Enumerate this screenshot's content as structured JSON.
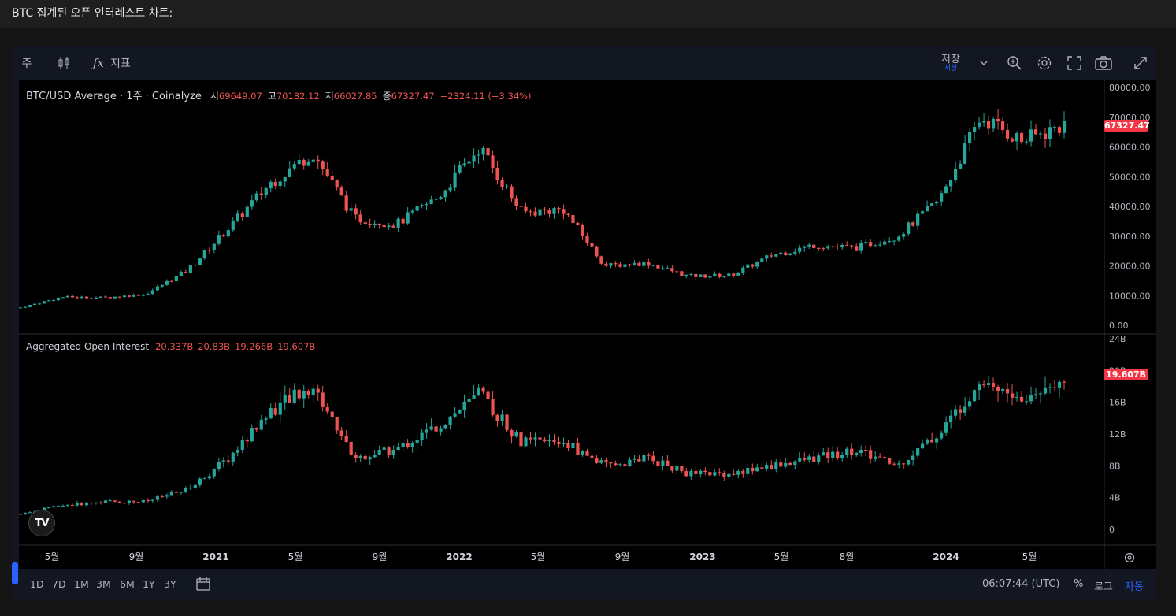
{
  "page_title": "BTC 집계된 오픈 인터레스트 차트:",
  "toolbar": {
    "interval": "주",
    "indicators_label": "지표",
    "save_label": "저장",
    "save_sublabel": "저장"
  },
  "legend_top": {
    "symbol": "BTC/USD Average · 1주 · Coinalyze",
    "o_label": "시",
    "o": "69649.07",
    "h_label": "고",
    "h": "70182.12",
    "l_label": "저",
    "l": "66027.85",
    "c_label": "종",
    "c": "67327.47",
    "change": "−2324.11 (−3.34%)"
  },
  "legend_bottom": {
    "name": "Aggregated Open Interest",
    "o": "20.337B",
    "h": "20.83B",
    "l": "19.266B",
    "c": "19.607B"
  },
  "price_scale_top": [
    "80000.00",
    "70000.00",
    "60000.00",
    "50000.00",
    "40000.00",
    "30000.00",
    "20000.00",
    "10000.00",
    "0.00"
  ],
  "price_scale_bottom": [
    "24B",
    "20B",
    "16B",
    "12B",
    "8B",
    "4B",
    "0"
  ],
  "last_price_tag": "67327.47",
  "last_oi_tag": "19.607B",
  "time_axis": [
    "5월",
    "9월",
    "2021",
    "5월",
    "9월",
    "2022",
    "5월",
    "9월",
    "2023",
    "5월",
    "8월",
    "2024",
    "5월"
  ],
  "logo_text": "TV",
  "bottom_bar": {
    "ranges": [
      "1D",
      "7D",
      "1M",
      "3M",
      "6M",
      "1Y",
      "3Y"
    ],
    "clock": "06:07:44 (UTC)",
    "percent_label": "%",
    "log_label": "로그",
    "auto_label": "자동"
  },
  "colors": {
    "up": "#26a69a",
    "down": "#ef5350",
    "accent": "#2962ff"
  },
  "icons": [
    "candle-style-icon",
    "fx-icon",
    "chevron-down-icon",
    "magnify-plus-icon",
    "gear-icon",
    "fullscreen-icon",
    "camera-icon",
    "expand-icon",
    "calendar-icon",
    "settings-icon"
  ],
  "chart_data": {
    "type": "candlestick",
    "interval": "1W",
    "price_series": {
      "name": "BTC/USD Average",
      "ylim": [
        0,
        80000
      ],
      "x": [
        "2020-03",
        "2020-05",
        "2020-07",
        "2020-09",
        "2020-11",
        "2021-01",
        "2021-02",
        "2021-04",
        "2021-05",
        "2021-07",
        "2021-09",
        "2021-11",
        "2022-01",
        "2022-04",
        "2022-06",
        "2022-08",
        "2022-11",
        "2022-12",
        "2023-02",
        "2023-05",
        "2023-08",
        "2023-10",
        "2024-01",
        "2024-03",
        "2024-05",
        "2024-06"
      ],
      "close": [
        6000,
        9500,
        9300,
        10500,
        18500,
        33000,
        48000,
        58000,
        36000,
        34000,
        43000,
        60000,
        38000,
        39000,
        20000,
        21000,
        16500,
        16800,
        23500,
        27000,
        26000,
        30000,
        42000,
        70000,
        62000,
        67327.47
      ]
    },
    "oi_series": {
      "name": "Aggregated Open Interest",
      "unit": "B",
      "ylim": [
        0,
        24
      ],
      "x": [
        "2020-03",
        "2020-05",
        "2020-07",
        "2020-09",
        "2020-11",
        "2021-01",
        "2021-02",
        "2021-04",
        "2021-05",
        "2021-07",
        "2021-09",
        "2021-11",
        "2022-01",
        "2022-04",
        "2022-06",
        "2022-08",
        "2022-11",
        "2022-12",
        "2023-02",
        "2023-05",
        "2023-08",
        "2023-10",
        "2024-01",
        "2024-03",
        "2024-05",
        "2024-06"
      ],
      "close": [
        2,
        3,
        3.5,
        3.5,
        5,
        9,
        15,
        18,
        9,
        10,
        13,
        17,
        11,
        11,
        8,
        9,
        7,
        7,
        8,
        9,
        10,
        8,
        12,
        19,
        16,
        19.607
      ]
    }
  }
}
